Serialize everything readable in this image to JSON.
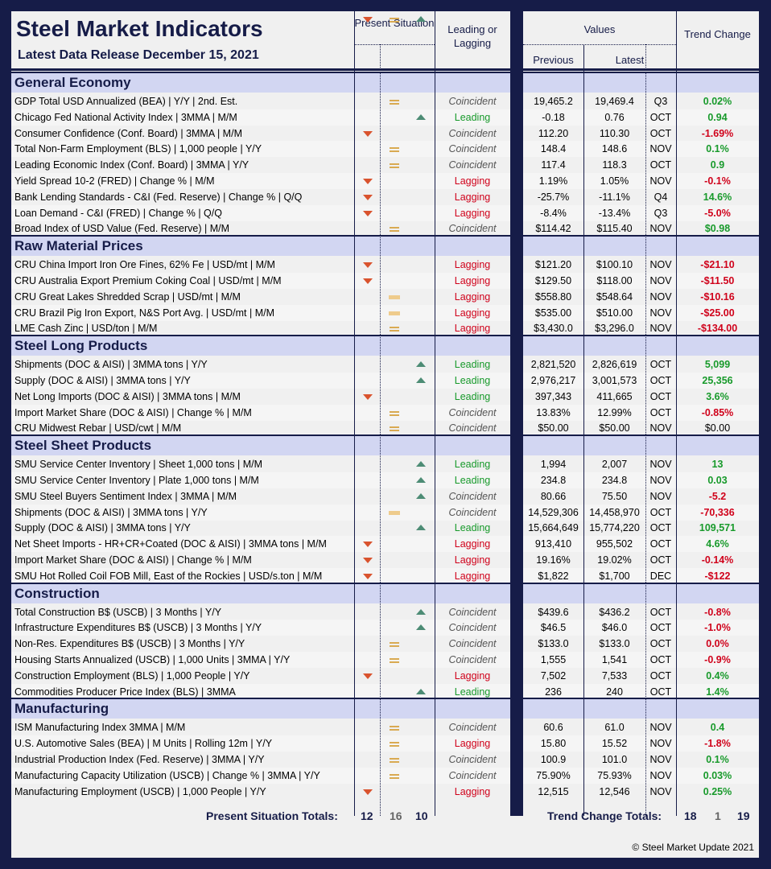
{
  "header": {
    "title": "Steel Market Indicators",
    "subtitle": "Latest Data Release December 15, 2021",
    "present": "Present Situation",
    "leading": "Leading or Lagging",
    "values": "Values",
    "previous": "Previous",
    "latest": "Latest",
    "trend": "Trend Change"
  },
  "colors": {
    "navy": "#161c48",
    "section": "#d2d6f2",
    "down": "#d9532e",
    "up": "#4d8c75",
    "eq": "#d9aa52",
    "positive": "#189a2b",
    "negative": "#d0021b"
  },
  "sections": [
    {
      "name": "General Economy",
      "rows": [
        [
          "GDP Total USD Annualized (BEA) | Y/Y | 2nd. Est.",
          "eq",
          "Coincident",
          "19,465.2",
          "19,469.4",
          "Q3",
          "0.02%",
          "G"
        ],
        [
          "Chicago Fed National Activity Index | 3MMA | M/M",
          "up",
          "Leading",
          "-0.18",
          "0.76",
          "OCT",
          "0.94",
          "G"
        ],
        [
          "Consumer Confidence (Conf. Board) | 3MMA | M/M",
          "down",
          "Coincident",
          "112.20",
          "110.30",
          "OCT",
          "-1.69%",
          "R"
        ],
        [
          "Total Non-Farm Employment (BLS) | 1,000 people | Y/Y",
          "eq",
          "Coincident",
          "148.4",
          "148.6",
          "NOV",
          "0.1%",
          "G"
        ],
        [
          "Leading Economic Index (Conf. Board) | 3MMA | Y/Y",
          "eq",
          "Coincident",
          "117.4",
          "118.3",
          "OCT",
          "0.9",
          "G"
        ],
        [
          "Yield Spread 10-2 (FRED) | Change % | M/M",
          "down",
          "Lagging",
          "1.19%",
          "1.05%",
          "NOV",
          "-0.1%",
          "R"
        ],
        [
          "Bank Lending Standards - C&I (Fed. Reserve) | Change % | Q/Q",
          "down",
          "Lagging",
          "-25.7%",
          "-11.1%",
          "Q4",
          "14.6%",
          "G"
        ],
        [
          "Loan Demand - C&I (FRED) | Change % | Q/Q",
          "down",
          "Lagging",
          "-8.4%",
          "-13.4%",
          "Q3",
          "-5.0%",
          "R"
        ],
        [
          "Broad Index of USD Value (Fed. Reserve) | M/M",
          "eq",
          "Coincident",
          "$114.42",
          "$115.40",
          "NOV",
          "$0.98",
          "G"
        ]
      ]
    },
    {
      "name": "Raw Material Prices",
      "rows": [
        [
          "CRU China Import Iron Ore Fines, 62% Fe | USD/mt | M/M",
          "down",
          "Lagging",
          "$121.20",
          "$100.10",
          "NOV",
          "-$21.10",
          "R"
        ],
        [
          "CRU Australia Export Premium Coking Coal | USD/mt | M/M",
          "down",
          "Lagging",
          "$129.50",
          "$118.00",
          "NOV",
          "-$11.50",
          "R"
        ],
        [
          "CRU Great Lakes Shredded Scrap | USD/mt | M/M",
          "eql",
          "Lagging",
          "$558.80",
          "$548.64",
          "NOV",
          "-$10.16",
          "R"
        ],
        [
          "CRU Brazil Pig Iron Export, N&S Port Avg. | USD/mt | M/M",
          "eql",
          "Lagging",
          "$535.00",
          "$510.00",
          "NOV",
          "-$25.00",
          "R"
        ],
        [
          "LME Cash Zinc | USD/ton | M/M",
          "eq",
          "Lagging",
          "$3,430.0",
          "$3,296.0",
          "NOV",
          "-$134.00",
          "R"
        ]
      ]
    },
    {
      "name": "Steel Long Products",
      "rows": [
        [
          "Shipments (DOC & AISI) | 3MMA tons | Y/Y",
          "up",
          "Leading",
          "2,821,520",
          "2,826,619",
          "OCT",
          "5,099",
          "G"
        ],
        [
          "Supply (DOC & AISI) | 3MMA tons | Y/Y",
          "up",
          "Leading",
          "2,976,217",
          "3,001,573",
          "OCT",
          "25,356",
          "G"
        ],
        [
          "Net Long Imports (DOC & AISI) | 3MMA tons | M/M",
          "down",
          "Leading",
          "397,343",
          "411,665",
          "OCT",
          "3.6%",
          "G"
        ],
        [
          "Import Market Share (DOC & AISI) | Change % | M/M",
          "eq",
          "Coincident",
          "13.83%",
          "12.99%",
          "OCT",
          "-0.85%",
          "R"
        ],
        [
          "CRU Midwest Rebar | USD/cwt | M/M",
          "eq",
          "Coincident",
          "$50.00",
          "$50.00",
          "NOV",
          "$0.00",
          "K"
        ]
      ]
    },
    {
      "name": "Steel Sheet Products",
      "rows": [
        [
          "SMU Service Center Inventory | Sheet 1,000 tons | M/M",
          "up",
          "Leading",
          "1,994",
          "2,007",
          "NOV",
          "13",
          "G"
        ],
        [
          "SMU Service Center Inventory | Plate 1,000 tons | M/M",
          "up",
          "Leading",
          "234.8",
          "234.8",
          "NOV",
          "0.03",
          "G"
        ],
        [
          "SMU Steel Buyers Sentiment Index | 3MMA | M/M",
          "up",
          "Coincident",
          "80.66",
          "75.50",
          "NOV",
          "-5.2",
          "R"
        ],
        [
          "Shipments (DOC & AISI) | 3MMA tons | Y/Y",
          "eql",
          "Coincident",
          "14,529,306",
          "14,458,970",
          "OCT",
          "-70,336",
          "R"
        ],
        [
          "Supply (DOC & AISI) | 3MMA tons | Y/Y",
          "up",
          "Leading",
          "15,664,649",
          "15,774,220",
          "OCT",
          "109,571",
          "G"
        ],
        [
          "Net Sheet Imports - HR+CR+Coated (DOC & AISI) | 3MMA tons | M/M",
          "down",
          "Lagging",
          "913,410",
          "955,502",
          "OCT",
          "4.6%",
          "G"
        ],
        [
          "Import Market Share (DOC & AISI) | Change % | M/M",
          "down",
          "Lagging",
          "19.16%",
          "19.02%",
          "OCT",
          "-0.14%",
          "R"
        ],
        [
          "SMU Hot Rolled Coil FOB Mill, East of the Rockies | USD/s.ton | M/M",
          "down",
          "Lagging",
          "$1,822",
          "$1,700",
          "DEC",
          "-$122",
          "R"
        ]
      ]
    },
    {
      "name": "Construction",
      "rows": [
        [
          "Total Construction B$ (USCB) | 3 Months | Y/Y",
          "up",
          "Coincident",
          "$439.6",
          "$436.2",
          "OCT",
          "-0.8%",
          "R"
        ],
        [
          "Infrastructure Expenditures B$ (USCB) | 3 Months | Y/Y",
          "up",
          "Coincident",
          "$46.5",
          "$46.0",
          "OCT",
          "-1.0%",
          "R"
        ],
        [
          "Non-Res. Expenditures B$ (USCB) | 3 Months | Y/Y",
          "eq",
          "Coincident",
          "$133.0",
          "$133.0",
          "OCT",
          "0.0%",
          "R"
        ],
        [
          "Housing Starts Annualized (USCB) | 1,000 Units | 3MMA | Y/Y",
          "eq",
          "Coincident",
          "1,555",
          "1,541",
          "OCT",
          "-0.9%",
          "R"
        ],
        [
          "Construction Employment (BLS) | 1,000 People | Y/Y",
          "down",
          "Lagging",
          "7,502",
          "7,533",
          "OCT",
          "0.4%",
          "G"
        ],
        [
          "Commodities Producer Price Index (BLS) | 3MMA",
          "up",
          "Leading",
          "236",
          "240",
          "OCT",
          "1.4%",
          "G"
        ]
      ]
    },
    {
      "name": "Manufacturing",
      "rows": [
        [
          "ISM Manufacturing Index 3MMA | M/M",
          "eq",
          "Coincident",
          "60.6",
          "61.0",
          "NOV",
          "0.4",
          "G"
        ],
        [
          "U.S. Automotive Sales (BEA) | M Units | Rolling 12m | Y/Y",
          "eq",
          "Lagging",
          "15.80",
          "15.52",
          "NOV",
          "-1.8%",
          "R"
        ],
        [
          "Industrial Production Index (Fed. Reserve) | 3MMA | Y/Y",
          "eq",
          "Coincident",
          "100.9",
          "101.0",
          "NOV",
          "0.1%",
          "G"
        ],
        [
          "Manufacturing Capacity Utilization (USCB) | Change % | 3MMA | Y/Y",
          "eq",
          "Coincident",
          "75.90%",
          "75.93%",
          "NOV",
          "0.03%",
          "G"
        ],
        [
          "Manufacturing Employment (USCB) | 1,000 People | Y/Y",
          "down",
          "Lagging",
          "12,515",
          "12,546",
          "NOV",
          "0.25%",
          "G"
        ]
      ]
    }
  ],
  "totals": {
    "present_label": "Present Situation Totals:",
    "present": [
      "12",
      "16",
      "10"
    ],
    "trend_label": "Trend Change Totals:",
    "trend": [
      "18",
      "1",
      "19"
    ]
  },
  "footer": "© Steel Market Update 2021"
}
